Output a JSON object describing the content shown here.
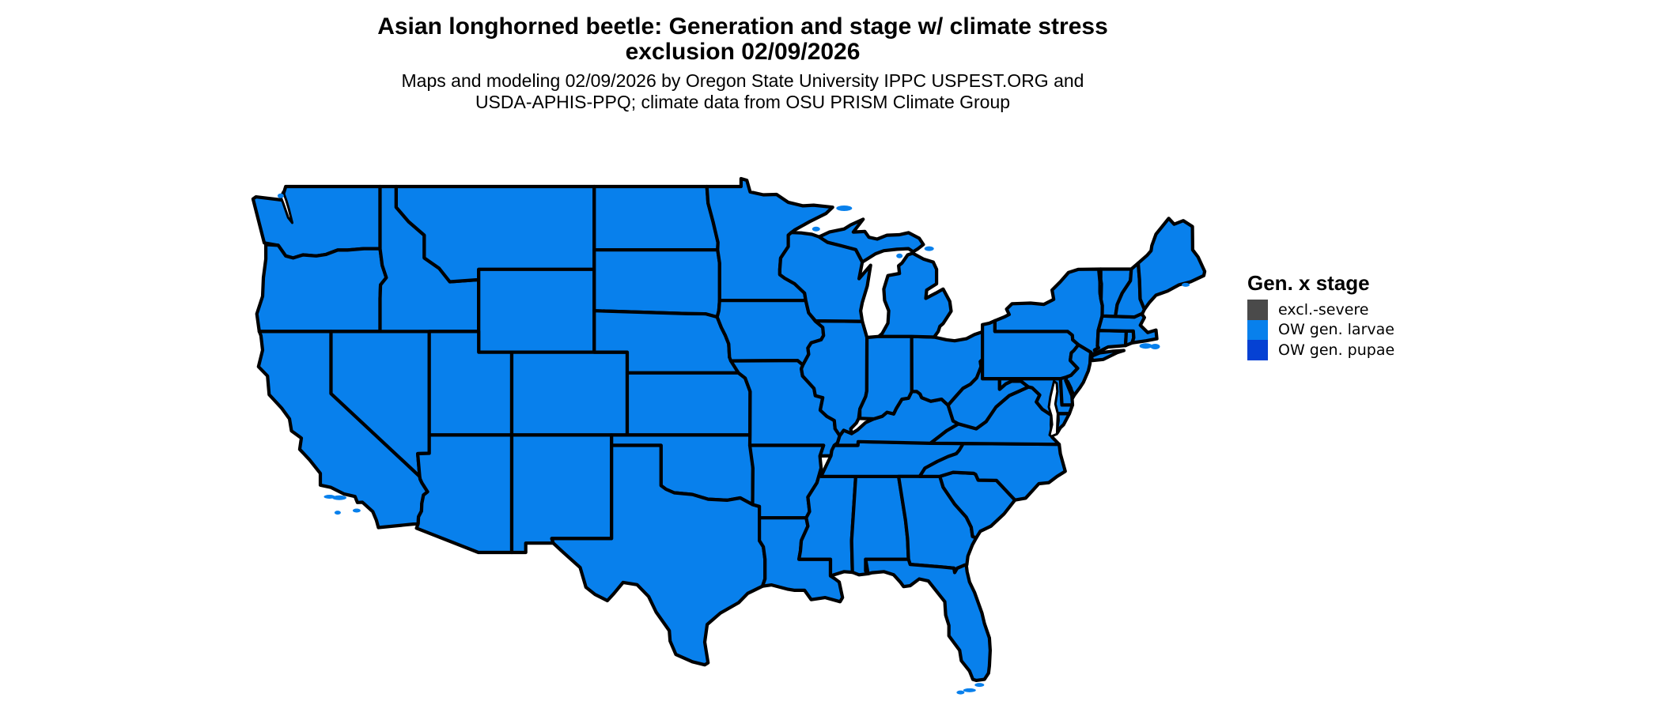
{
  "title": {
    "line1": "Asian longhorned beetle: Generation and stage w/ climate stress",
    "line2": "exclusion 02/09/2026"
  },
  "subtitle": {
    "line1": "Maps and modeling 02/09/2026 by Oregon State University IPPC USPEST.ORG and",
    "line2": "USDA-APHIS-PPQ; climate data from OSU PRISM Climate Group"
  },
  "legend": {
    "title": "Gen. x stage",
    "items": [
      {
        "label": "excl.-severe",
        "color": "#4A4A4A"
      },
      {
        "label": "OW gen. larvae",
        "color": "#0880EC"
      },
      {
        "label": "OW gen. pupae",
        "color": "#0541D3"
      }
    ]
  },
  "map": {
    "region": "Continental United States",
    "uniform_class": "OW gen. larvae",
    "fill_color": "#0880EC",
    "border_color": "#000000",
    "water_color": "#FFFFFF",
    "background": "#FFFFFF"
  }
}
